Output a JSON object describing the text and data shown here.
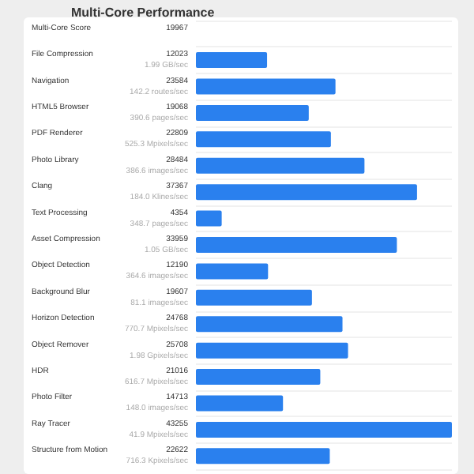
{
  "chart_data": {
    "type": "bar",
    "orientation": "horizontal",
    "title": "Multi-Core Performance",
    "categories": [
      "Multi-Core Score",
      "File Compression",
      "Navigation",
      "HTML5 Browser",
      "PDF Renderer",
      "Photo Library",
      "Clang",
      "Text Processing",
      "Asset Compression",
      "Object Detection",
      "Background Blur",
      "Horizon Detection",
      "Object Remover",
      "HDR",
      "Photo Filter",
      "Ray Tracer",
      "Structure from Motion"
    ],
    "values": [
      null,
      12023,
      23584,
      19068,
      22809,
      28484,
      37367,
      4354,
      33959,
      12190,
      19607,
      24768,
      25708,
      21016,
      14713,
      43255,
      22622
    ],
    "color": "#2a80ee",
    "data_labels": true,
    "grid": "y",
    "tick_labels": "y",
    "annotations": [
      "19967",
      "1.99 GB/sec",
      "142.2 routes/sec",
      "390.6 pages/sec",
      "525.3 Mpixels/sec",
      "386.6 images/sec",
      "184.0 Klines/sec",
      "348.7 pages/sec",
      "1.05 GB/sec",
      "364.6 images/sec",
      "81.1 images/sec",
      "770.7 Mpixels/sec",
      "1.98 Gpixels/sec",
      "616.7 Mpixels/sec",
      "148.0 images/sec",
      "41.9 Mpixels/sec",
      "716.3 Kpixels/sec"
    ]
  }
}
